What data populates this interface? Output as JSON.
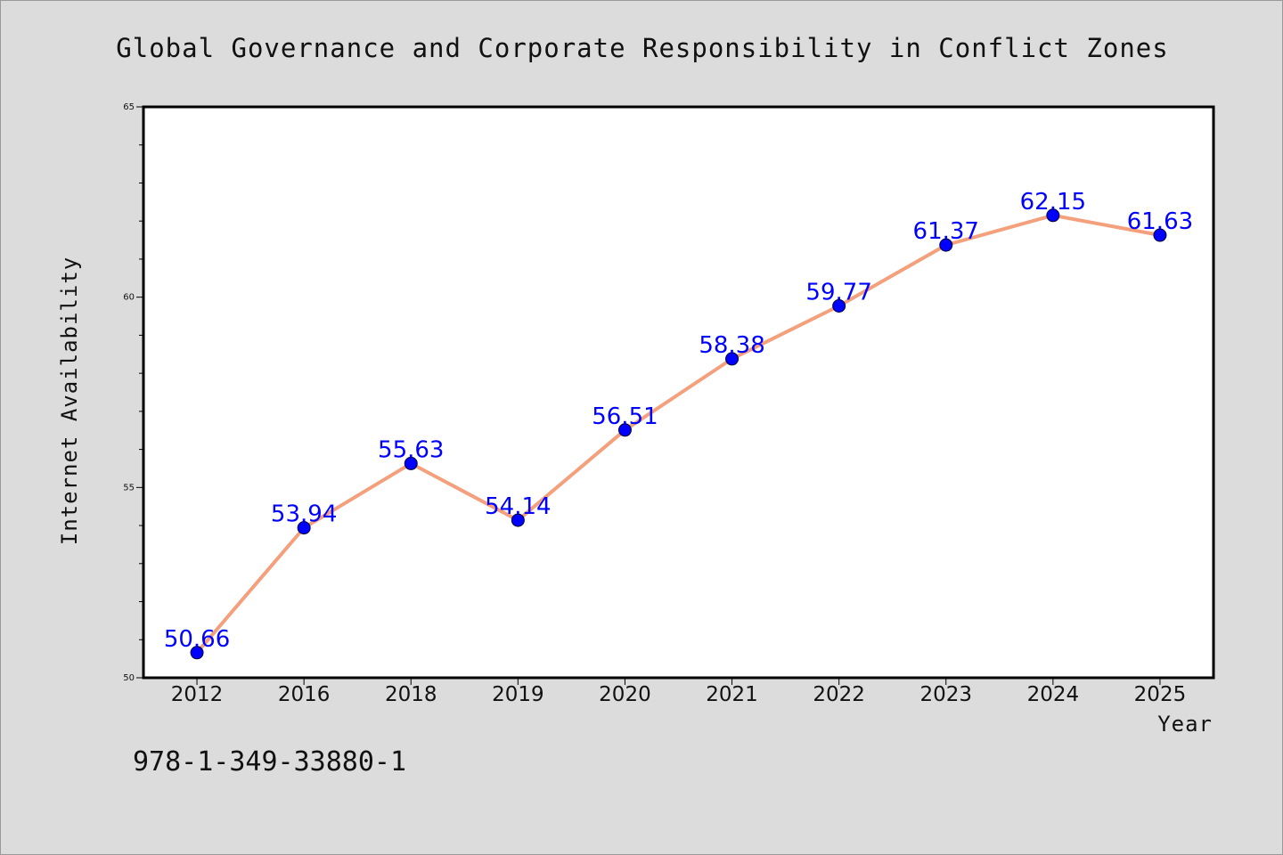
{
  "chart_data": {
    "type": "line",
    "title": "Global Governance and Corporate Responsibility in Conflict Zones",
    "xlabel": "Year",
    "ylabel": "Internet Availability",
    "categories": [
      "2012",
      "2016",
      "2018",
      "2019",
      "2020",
      "2021",
      "2022",
      "2023",
      "2024",
      "2025"
    ],
    "values": [
      50.66,
      53.94,
      55.63,
      54.14,
      56.51,
      58.38,
      59.77,
      61.37,
      62.15,
      61.63
    ],
    "data_labels": [
      "50.66",
      "53.94",
      "55.63",
      "54.14",
      "56.51",
      "58.38",
      "59.77",
      "61.37",
      "62.15",
      "61.63"
    ],
    "ylim": [
      50,
      65
    ],
    "yticks": [
      "50",
      "55",
      "60",
      "65"
    ],
    "yminor_step": 1,
    "grid": false,
    "legend": "none",
    "line_color": "#f4a07c",
    "marker_color": "#0000ff",
    "label_color": "#0000ff"
  },
  "footer": {
    "isbn": "978-1-349-33880-1"
  }
}
